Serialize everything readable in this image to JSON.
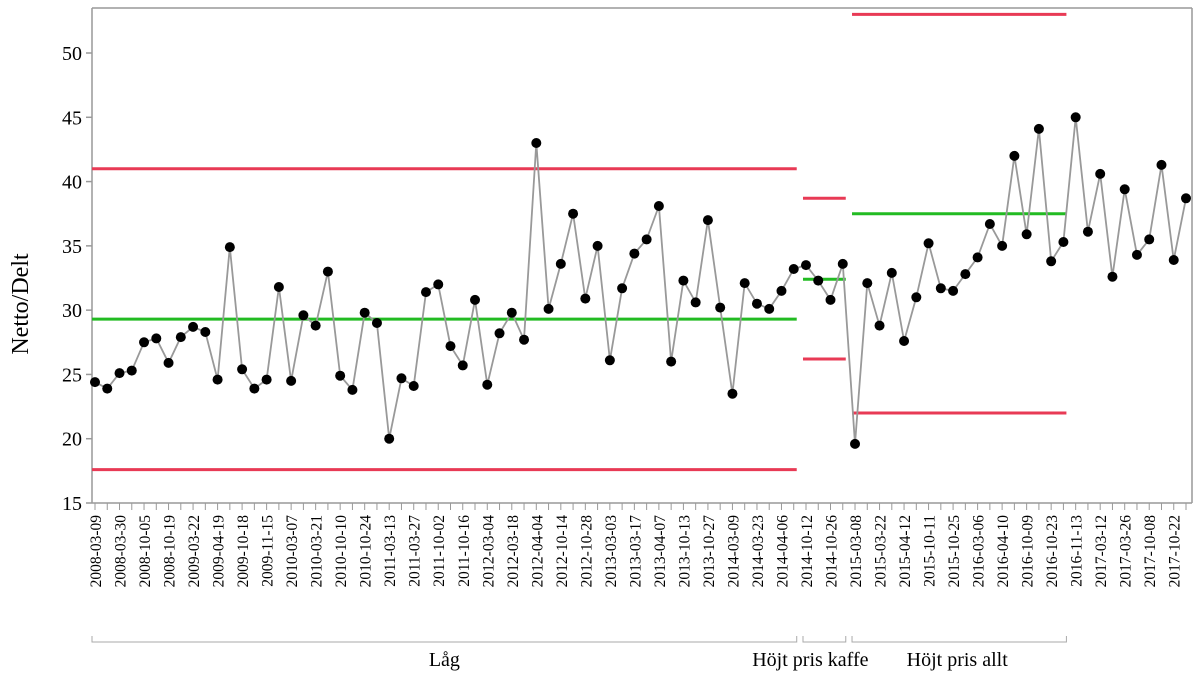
{
  "chart_data": {
    "type": "line",
    "ylabel": "Netto/Delt",
    "ylim": [
      15,
      53.5
    ],
    "y_ticks": [
      15,
      20,
      25,
      30,
      35,
      40,
      45,
      50
    ],
    "x_tick_labels": [
      "2008-03-09",
      "2008-03-30",
      "2008-10-05",
      "2008-10-19",
      "2009-03-22",
      "2009-04-19",
      "2009-10-18",
      "2009-11-15",
      "2010-03-07",
      "2010-03-21",
      "2010-10-10",
      "2010-10-24",
      "2011-03-13",
      "2011-03-27",
      "2011-10-02",
      "2011-10-16",
      "2012-03-04",
      "2012-03-18",
      "2012-04-04",
      "2012-10-14",
      "2012-10-28",
      "2013-03-03",
      "2013-03-17",
      "2013-04-07",
      "2013-10-13",
      "2013-10-27",
      "2014-03-09",
      "2014-03-23",
      "2014-04-06",
      "2014-10-12",
      "2014-10-26",
      "2015-03-08",
      "2015-03-22",
      "2015-04-12",
      "2015-10-11",
      "2015-10-25",
      "2016-03-06",
      "2016-04-10",
      "2016-10-09",
      "2016-10-23",
      "2016-11-13",
      "2017-03-12",
      "2017-03-26",
      "2017-10-08",
      "2017-10-22"
    ],
    "phases": [
      {
        "label": "Låg",
        "start": 0,
        "end": 57,
        "mean": 29.3,
        "ucl": 41.0,
        "lcl": 17.6
      },
      {
        "label": "Höjt pris kaffe",
        "start": 58,
        "end": 61,
        "mean": 32.4,
        "ucl": 38.7,
        "lcl": 26.2
      },
      {
        "label": "Höjt pris allt",
        "start": 62,
        "end": 79,
        "mean": 37.5,
        "ucl": 53.0,
        "lcl": 22.0
      }
    ],
    "series": [
      {
        "values": [
          24.4,
          23.9,
          25.1,
          25.3,
          27.5,
          27.8,
          25.9,
          27.9,
          28.7,
          28.3,
          24.6,
          34.9,
          25.4,
          23.9,
          24.6,
          31.8,
          24.5,
          29.6,
          28.8,
          33.0,
          24.9,
          23.8,
          29.8,
          29.0,
          20.0,
          24.7,
          24.1,
          31.4,
          32.0,
          27.2,
          25.7,
          30.8,
          24.2,
          28.2,
          29.8,
          27.7,
          43.0,
          30.1,
          33.6,
          37.5,
          30.9,
          35.0,
          26.1,
          31.7,
          34.4,
          35.5,
          38.1,
          26.0,
          32.3,
          30.6,
          37.0,
          30.2,
          23.5,
          32.1,
          30.5,
          30.1,
          31.5,
          33.2,
          33.5,
          32.3,
          30.8,
          33.6,
          19.6,
          32.1,
          28.8,
          32.9,
          27.6,
          31.0,
          35.2,
          31.7,
          31.5,
          32.8,
          34.1,
          36.7,
          35.0,
          42.0,
          35.9,
          44.1,
          33.8,
          35.3,
          45.0,
          36.1,
          40.6,
          32.6,
          39.4,
          34.3,
          35.5,
          41.3,
          33.9,
          38.7
        ]
      }
    ],
    "colors": {
      "line": "#999999",
      "point": "#000000",
      "mean": "#22bb22",
      "limits": "#e83a55",
      "axis": "#999999"
    }
  }
}
